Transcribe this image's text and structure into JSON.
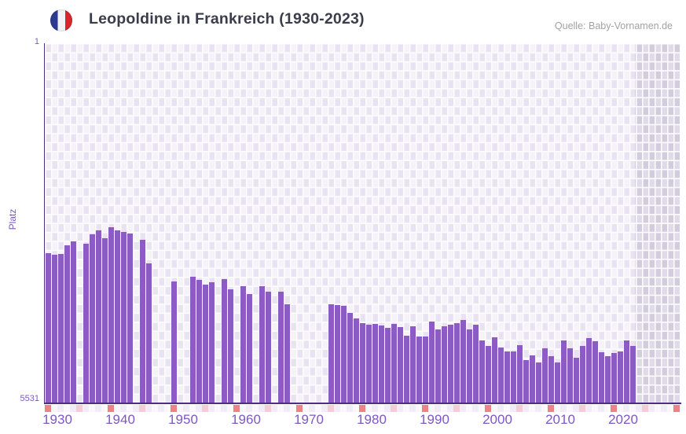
{
  "header": {
    "title": "Leopoldine in Frankreich (1930-2023)",
    "flag_icon": "france-flag-circle-icon",
    "source": "Quelle: Baby-Vornamen.de"
  },
  "chart_data": {
    "type": "bar",
    "title": "Leopoldine in Frankreich (1930-2023)",
    "xlabel": "",
    "ylabel": "Platz",
    "y_axis": {
      "top_label": "1",
      "bottom_label": "5531",
      "min": 1,
      "max": 5531,
      "inverted": true,
      "note": "rank 1 at top, bars rise from bottom (rank 5531)"
    },
    "x_ticks": [
      1930,
      1940,
      1950,
      1960,
      1970,
      1980,
      1990,
      2000,
      2010,
      2020
    ],
    "years": [
      1928,
      1929,
      1930,
      1931,
      1932,
      1933,
      1934,
      1935,
      1936,
      1937,
      1938,
      1939,
      1940,
      1941,
      1942,
      1943,
      1944,
      1945,
      1946,
      1947,
      1948,
      1949,
      1950,
      1951,
      1952,
      1953,
      1954,
      1955,
      1956,
      1957,
      1958,
      1959,
      1960,
      1961,
      1962,
      1963,
      1964,
      1965,
      1966,
      1967,
      1968,
      1969,
      1970,
      1971,
      1972,
      1973,
      1974,
      1975,
      1976,
      1977,
      1978,
      1979,
      1980,
      1981,
      1982,
      1983,
      1984,
      1985,
      1986,
      1987,
      1988,
      1989,
      1990,
      1991,
      1992,
      1993,
      1994,
      1995,
      1996,
      1997,
      1998,
      1999,
      2000,
      2001,
      2002,
      2003,
      2004,
      2005,
      2006,
      2007,
      2008,
      2009,
      2010,
      2011,
      2012,
      2013,
      2014,
      2015,
      2016,
      2017,
      2018,
      2019,
      2020,
      2021,
      2022,
      2023
    ],
    "ranks": [
      3230,
      3260,
      3245,
      3105,
      3055,
      null,
      3085,
      2945,
      2875,
      3000,
      2835,
      2885,
      2910,
      2925,
      null,
      3025,
      3390,
      null,
      null,
      null,
      3665,
      null,
      null,
      3600,
      3645,
      3720,
      3685,
      null,
      3630,
      3785,
      null,
      3745,
      3855,
      null,
      3735,
      3830,
      null,
      3825,
      4020,
      null,
      null,
      null,
      null,
      null,
      null,
      4015,
      4025,
      4045,
      4155,
      4235,
      4310,
      4330,
      4320,
      4340,
      4385,
      4325,
      4365,
      4500,
      4355,
      4510,
      4510,
      4290,
      4410,
      4355,
      4330,
      4310,
      4255,
      4410,
      4330,
      4580,
      4665,
      4530,
      4680,
      4740,
      4740,
      4650,
      4880,
      4800,
      4915,
      4700,
      4815,
      4915,
      4580,
      4690,
      4840,
      4660,
      4540,
      4590,
      4760,
      4815,
      4770,
      4740,
      4570,
      4660,
      null,
      null
    ],
    "no_data_recent_years": [
      2022,
      2023
    ],
    "legend": null,
    "grid": "white checkerboard grid on lavender background",
    "colors": {
      "bar": "#8e5bc5",
      "axis_line": "#502d85",
      "tick_label": "#7e57c4",
      "title_text": "#3c3c4c",
      "source_text": "#a2a2a2",
      "bg_cell_light": "#f5f2fa",
      "bg_cell_dark": "#e9e2f3",
      "future_band_light": "#e0dae9",
      "future_band_dark": "#d3ccdf",
      "strip_decade_red": "#e98585",
      "strip_half_decade_pink": "#f3ccd7",
      "strip_default_a": "#f1ecf7",
      "strip_default_b": "#faf8fc"
    }
  }
}
